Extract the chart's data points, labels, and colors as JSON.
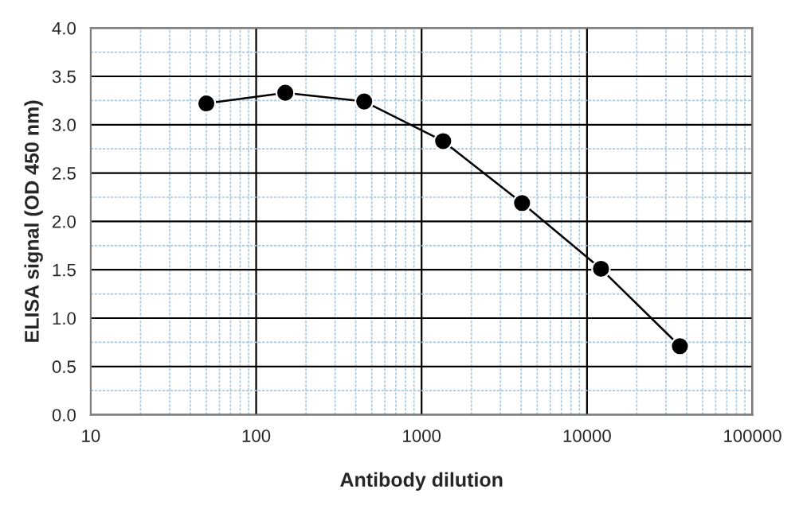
{
  "chart_data": {
    "type": "line",
    "xlabel": "Antibody dilution",
    "ylabel": "ELISA signal (OD 450 nm)",
    "log": "x",
    "x": [
      50,
      150,
      450,
      1350,
      4050,
      12150,
      36450
    ],
    "series": [
      {
        "color": "#000000",
        "values": [
          3.22,
          3.33,
          3.24,
          2.83,
          2.19,
          1.51,
          0.71
        ]
      }
    ],
    "xlim": [
      10,
      100000
    ],
    "xticks": [
      10,
      {
        "value": 20,
        "label": null
      },
      {
        "value": 30,
        "label": null
      },
      {
        "value": 40,
        "label": null
      },
      {
        "value": 50,
        "label": null
      },
      {
        "value": 60,
        "label": null
      },
      {
        "value": 70,
        "label": null
      },
      {
        "value": 80,
        "label": null
      },
      {
        "value": 90,
        "label": null
      },
      100,
      {
        "value": 200,
        "label": null
      },
      {
        "value": 300,
        "label": null
      },
      {
        "value": 400,
        "label": null
      },
      {
        "value": 500,
        "label": null
      },
      {
        "value": 600,
        "label": null
      },
      {
        "value": 700,
        "label": null
      },
      {
        "value": 800,
        "label": null
      },
      {
        "value": 900,
        "label": null
      },
      1000,
      {
        "value": 2000,
        "label": null
      },
      {
        "value": 3000,
        "label": null
      },
      {
        "value": 4000,
        "label": null
      },
      {
        "value": 5000,
        "label": null
      },
      {
        "value": 6000,
        "label": null
      },
      {
        "value": 7000,
        "label": null
      },
      {
        "value": 8000,
        "label": null
      },
      {
        "value": 9000,
        "label": null
      },
      10000,
      {
        "value": 20000,
        "label": null
      },
      {
        "value": 30000,
        "label": null
      },
      {
        "value": 40000,
        "label": null
      },
      {
        "value": 50000,
        "label": null
      },
      {
        "value": 60000,
        "label": null
      },
      {
        "value": 70000,
        "label": null
      },
      {
        "value": 80000,
        "label": null
      },
      {
        "value": 90000,
        "label": null
      },
      100000
    ],
    "ylim": [
      0,
      4
    ],
    "yticks": [
      {
        "value": 0,
        "label": "0.0"
      },
      {
        "value": 0.25,
        "label": null
      },
      {
        "value": 0.5,
        "label": "0.5"
      },
      {
        "value": 0.75,
        "label": null
      },
      {
        "value": 1,
        "label": "1.0"
      },
      {
        "value": 1.25,
        "label": null
      },
      {
        "value": 1.5,
        "label": "1.5"
      },
      {
        "value": 1.75,
        "label": null
      },
      {
        "value": 2,
        "label": "2.0"
      },
      {
        "value": 2.25,
        "label": null
      },
      {
        "value": 2.5,
        "label": "2.5"
      },
      {
        "value": 2.75,
        "label": null
      },
      {
        "value": 3,
        "label": "3.0"
      },
      {
        "value": 3.25,
        "label": null
      },
      {
        "value": 3.5,
        "label": "3.5"
      },
      {
        "value": 3.75,
        "label": null
      },
      {
        "value": 4,
        "label": "4.0"
      }
    ],
    "grid": true,
    "marker": "circle",
    "line_style": "solid"
  }
}
